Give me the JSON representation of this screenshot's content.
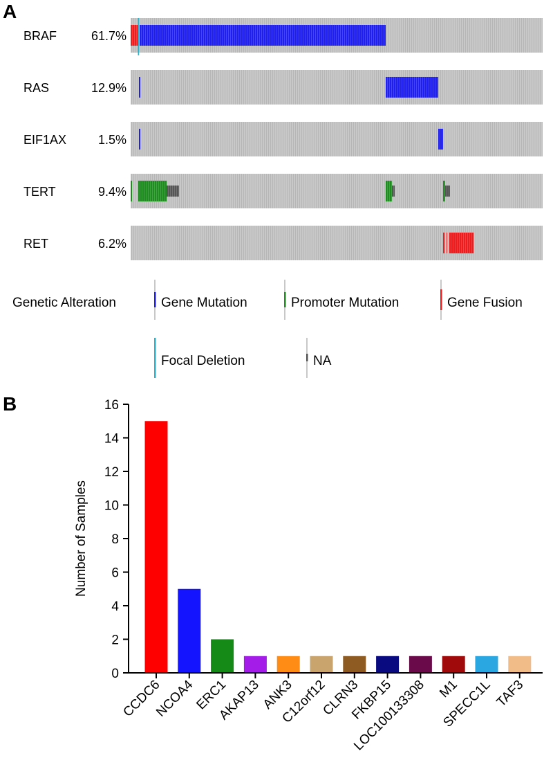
{
  "panel_a": {
    "label": "A",
    "rows": [
      {
        "gene": "BRAF",
        "pct": "61.7%"
      },
      {
        "gene": "RAS",
        "pct": "12.9%"
      },
      {
        "gene": "EIF1AX",
        "pct": "1.5%"
      },
      {
        "gene": "TERT",
        "pct": "9.4%"
      },
      {
        "gene": "RET",
        "pct": "6.2%"
      }
    ],
    "legend": {
      "title": "Genetic Alteration",
      "items": [
        {
          "key": "gene_mutation",
          "label": "Gene Mutation",
          "color": "#1f1ff0"
        },
        {
          "key": "promoter_mutation",
          "label": "Promoter Mutation",
          "color": "#1e8c1e"
        },
        {
          "key": "gene_fusion",
          "label": "Gene Fusion",
          "color": "#ee1c1c"
        },
        {
          "key": "focal_deletion",
          "label": "Focal Deletion",
          "color": "#2bb3c9"
        },
        {
          "key": "na",
          "label": "NA",
          "color": "#555555"
        }
      ]
    },
    "colors": {
      "background": "#c8c8c8",
      "stripe": "#b6b6b6"
    }
  },
  "panel_b": {
    "label": "B"
  },
  "chart_data": {
    "type": "bar",
    "title": "",
    "xlabel": "",
    "ylabel": "Number of Samples",
    "ylim": [
      0,
      16
    ],
    "yticks": [
      0,
      2,
      4,
      6,
      8,
      10,
      12,
      14,
      16
    ],
    "categories": [
      "CCDC6",
      "NCOA4",
      "ERC1",
      "AKAP13",
      "ANK3",
      "C12orf12",
      "CLRN3",
      "FKBP15",
      "LOC100133308",
      "M1",
      "SPECC1L",
      "TAF3"
    ],
    "values": [
      15,
      5,
      2,
      1,
      1,
      1,
      1,
      1,
      1,
      1,
      1,
      1
    ],
    "colors": [
      "#ff0000",
      "#1414ff",
      "#168a16",
      "#a41ce8",
      "#ff8c14",
      "#c9a46c",
      "#8e5c22",
      "#0a0a80",
      "#6a0a4a",
      "#a00a0a",
      "#2aa6e0",
      "#f2bc88"
    ]
  }
}
